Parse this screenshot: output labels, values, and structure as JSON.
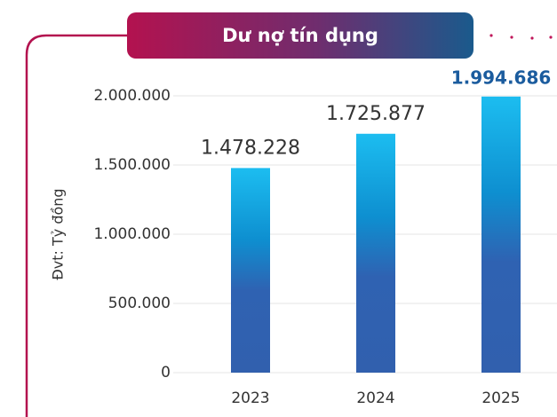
{
  "chart_data": {
    "type": "bar",
    "title": "Dư nợ tín dụng",
    "y_label": "Đvt: Tỷ đồng",
    "categories": [
      "2023",
      "2024",
      "2025"
    ],
    "values": [
      1478228,
      1725877,
      1994686
    ],
    "value_labels": [
      "1.478.228",
      "1.725.877",
      "1.994.686"
    ],
    "ylim": [
      0,
      2000000
    ],
    "yticks": [
      0,
      {
        "value": 500000,
        "label": "500.000"
      },
      {
        "value": 1000000,
        "label": "1.000.000"
      },
      {
        "value": 1500000,
        "label": "1.500.000"
      },
      {
        "value": 2000000,
        "label": "2.000.000"
      }
    ],
    "grid": true
  }
}
